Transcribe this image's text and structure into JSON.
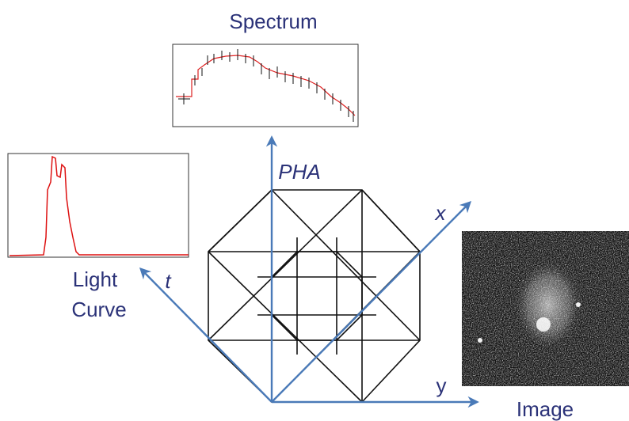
{
  "labels": {
    "spectrum": "Spectrum",
    "pha": "PHA",
    "x": "x",
    "light_curve": [
      "Light",
      "Curve"
    ],
    "t": "t",
    "y": "y",
    "image": "Image"
  }
}
